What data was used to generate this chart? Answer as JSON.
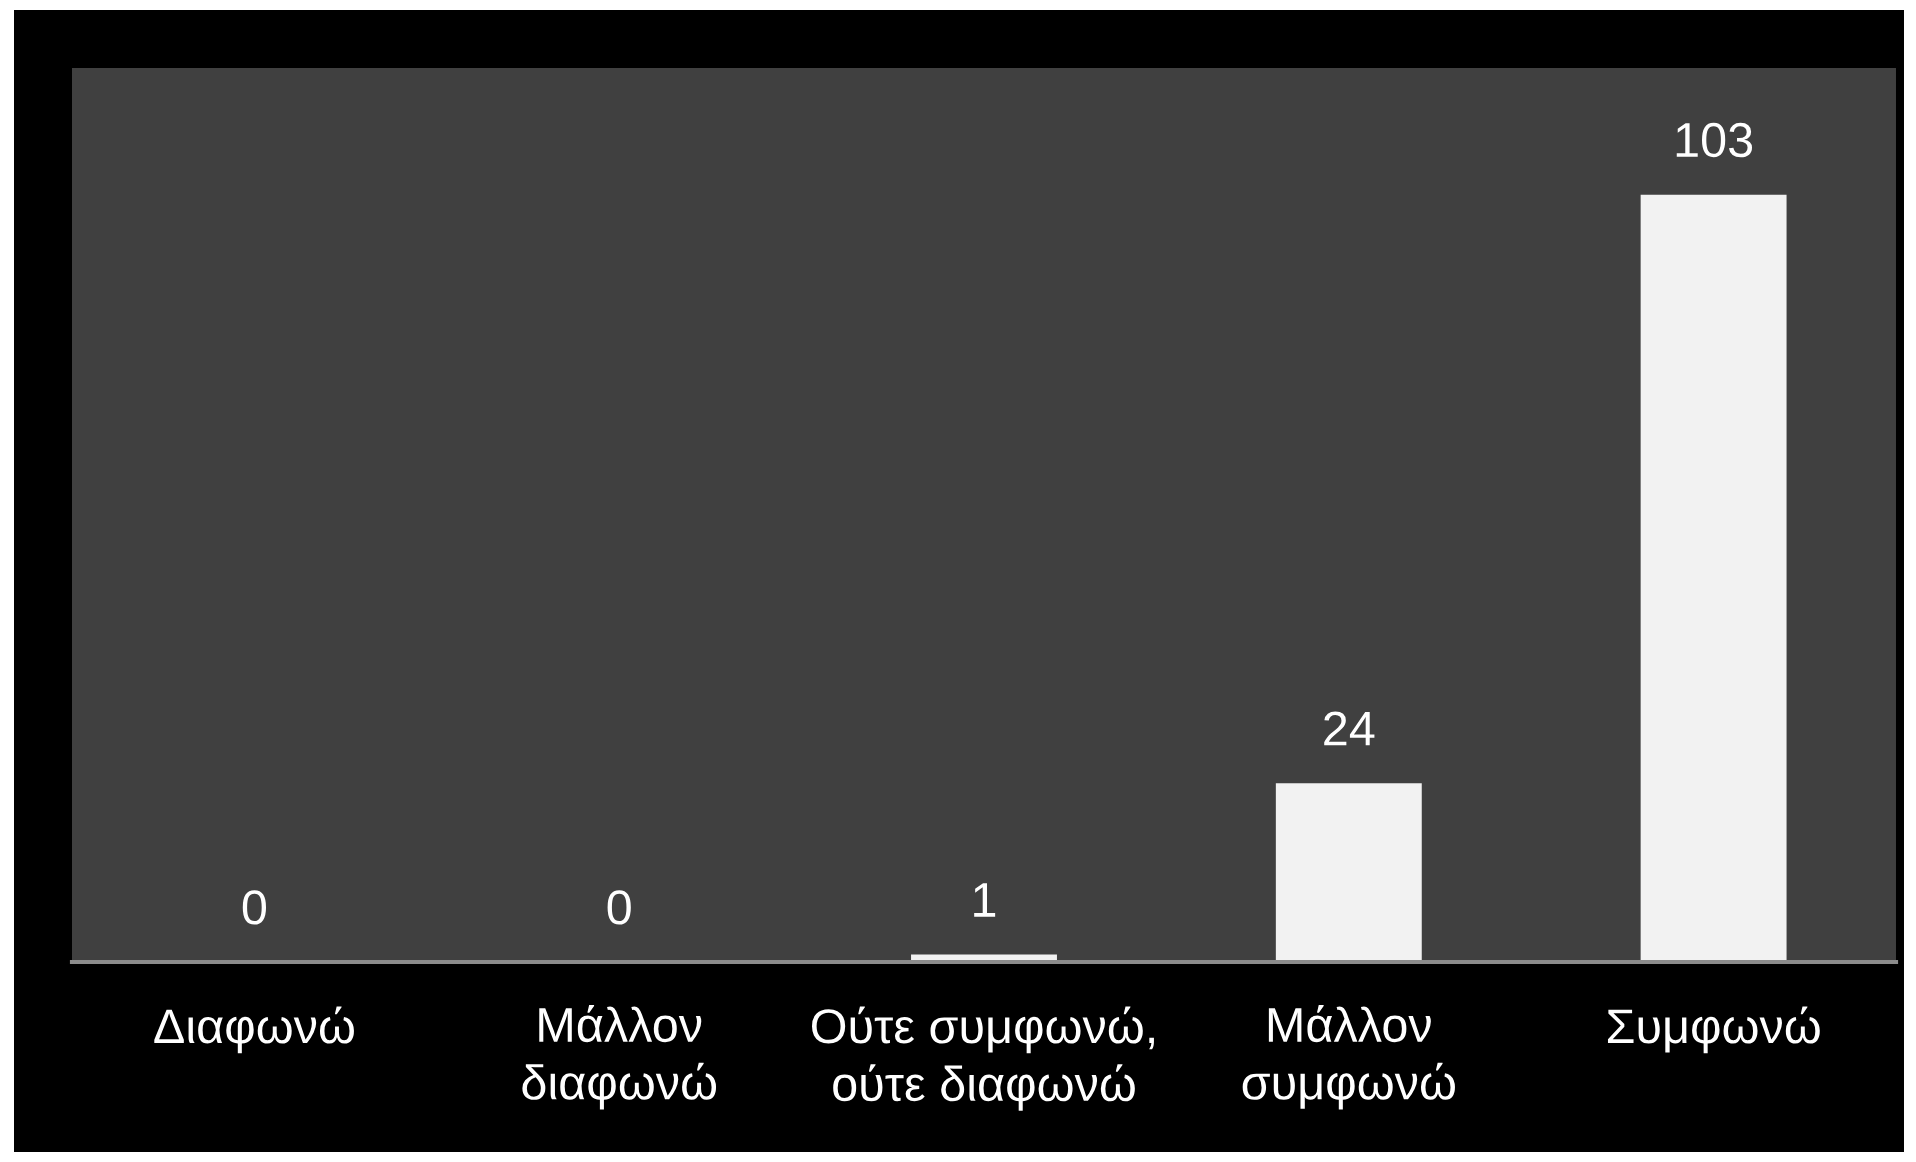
{
  "chart_data": {
    "type": "bar",
    "categories": [
      "Διαφωνώ",
      "Μάλλον διαφωνώ",
      "Ούτε συμφωνώ, ούτε διαφωνώ",
      "Μάλλον συμφωνώ",
      "Συμφωνώ"
    ],
    "values": [
      0,
      0,
      1,
      24,
      103
    ],
    "color": "#f2f2f2",
    "data_labels": true,
    "ylim": [
      0,
      120
    ],
    "tick_labels": "x"
  }
}
